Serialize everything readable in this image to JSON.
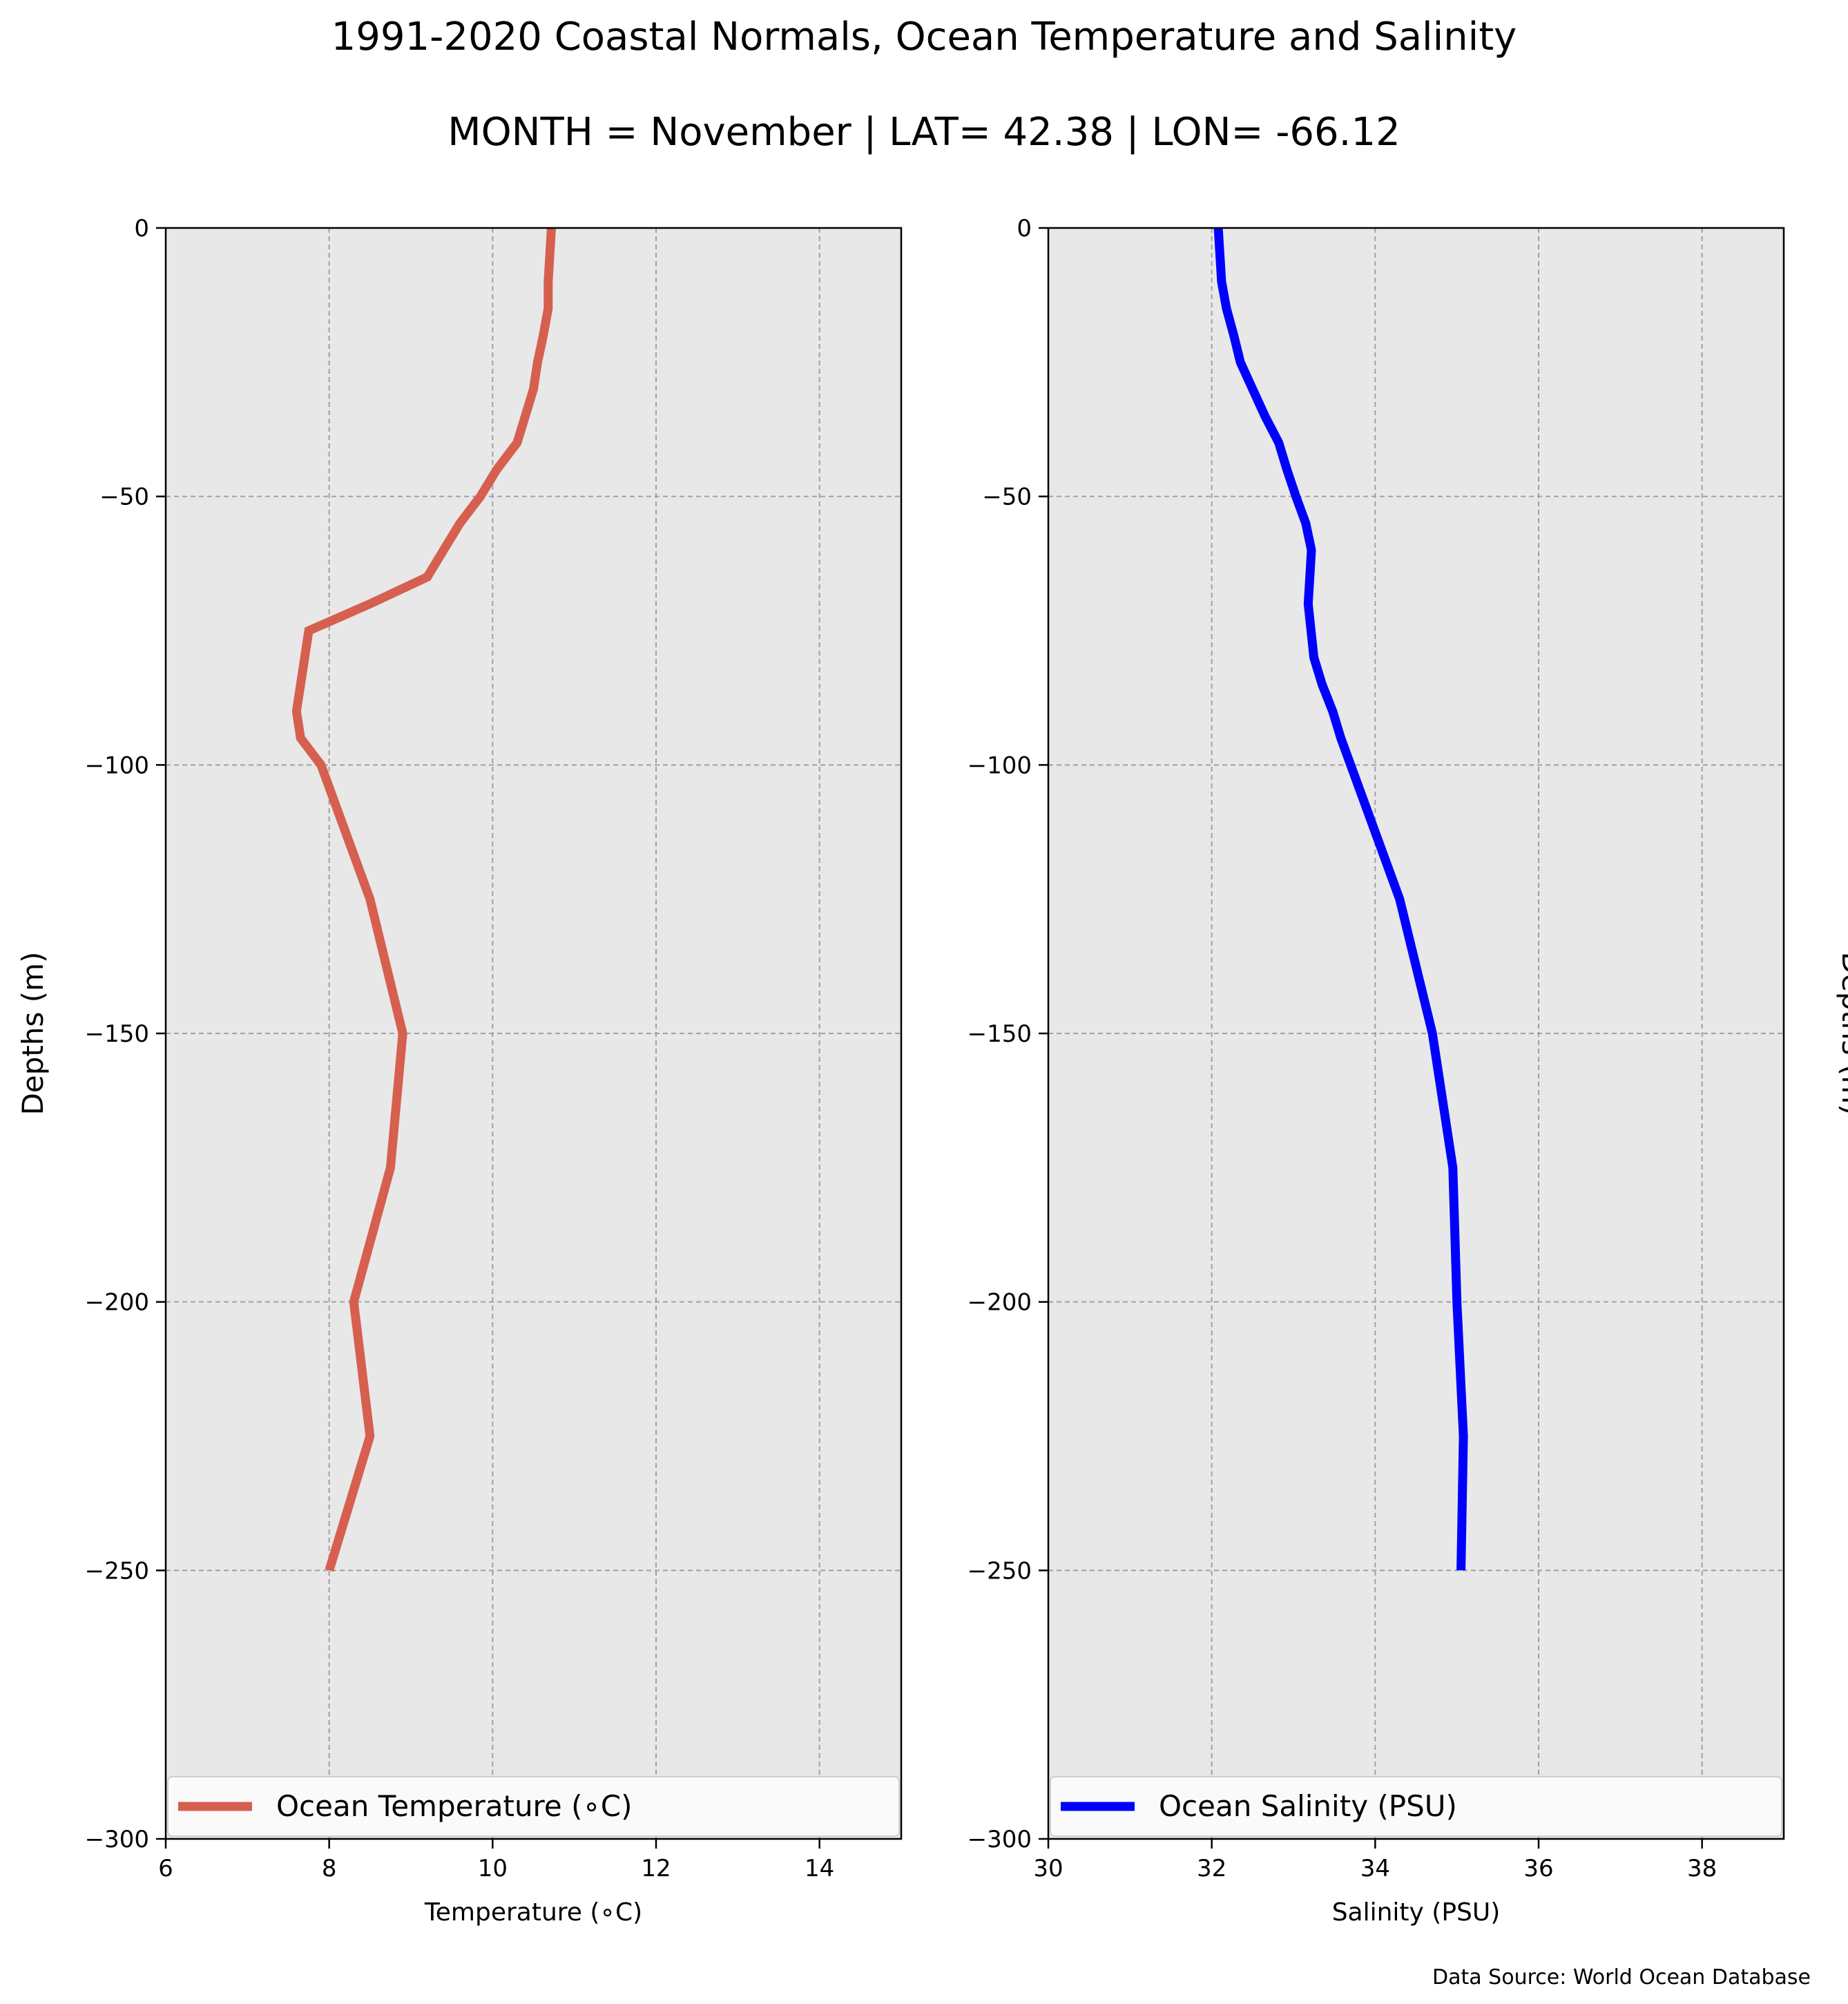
{
  "title": "1991-2020 Coastal Normals, Ocean Temperature and Salinity",
  "subtitle": "MONTH = November | LAT= 42.38 | LON= -66.12",
  "source_note": "Data Source: World Ocean Database",
  "chart_data": [
    {
      "type": "line",
      "xlabel": "Temperature (∘C)",
      "ylabel": "Depths (m)",
      "ylabel_side": "left",
      "xlim": [
        6,
        15
      ],
      "ylim": [
        -300,
        0
      ],
      "xticks": [
        6,
        8,
        10,
        12,
        14
      ],
      "yticks": [
        0,
        -50,
        -100,
        -150,
        -200,
        -250,
        -300
      ],
      "xtick_labels": [
        "6",
        "8",
        "10",
        "12",
        "14"
      ],
      "ytick_labels": [
        "0",
        "−50",
        "−100",
        "−150",
        "−200",
        "−250",
        "−300"
      ],
      "grid": true,
      "legend_position": "lower-center",
      "series": [
        {
          "name": "Ocean Temperature (∘C)",
          "color": "#d65f4f",
          "x": [
            10.72,
            10.68,
            10.68,
            10.62,
            10.55,
            10.5,
            10.3,
            10.05,
            9.85,
            9.6,
            9.4,
            9.2,
            8.5,
            7.75,
            7.7,
            7.65,
            7.6,
            7.65,
            7.75,
            7.9,
            8.5,
            8.9,
            8.75,
            8.3,
            8.5,
            8.0
          ],
          "y": [
            0,
            -10,
            -15,
            -20,
            -25,
            -30,
            -40,
            -45,
            -50,
            -55,
            -60,
            -65,
            -70,
            -75,
            -80,
            -85,
            -90,
            -95,
            -97,
            -100,
            -125,
            -150,
            -175,
            -200,
            -225,
            -250
          ]
        }
      ]
    },
    {
      "type": "line",
      "xlabel": "Salinity (PSU)",
      "ylabel": "Depths (m)",
      "ylabel_side": "right",
      "xlim": [
        30,
        39
      ],
      "ylim": [
        -300,
        0
      ],
      "xticks": [
        30,
        32,
        34,
        36,
        38
      ],
      "yticks": [
        0,
        -50,
        -100,
        -150,
        -200,
        -250,
        -300
      ],
      "xtick_labels": [
        "30",
        "32",
        "34",
        "36",
        "38"
      ],
      "ytick_labels": [
        "0",
        "−50",
        "−100",
        "−150",
        "−200",
        "−250",
        "−300"
      ],
      "grid": true,
      "legend_position": "lower-center",
      "series": [
        {
          "name": "Ocean Salinity (PSU)",
          "color": "#0000ff",
          "x": [
            32.08,
            32.12,
            32.18,
            32.27,
            32.35,
            32.5,
            32.65,
            32.82,
            32.92,
            33.03,
            33.15,
            33.22,
            33.2,
            33.18,
            33.25,
            33.35,
            33.48,
            33.58,
            33.7,
            34.3,
            34.7,
            34.95,
            35.0,
            35.08,
            35.05
          ],
          "y": [
            0,
            -10,
            -15,
            -20,
            -25,
            -30,
            -35,
            -40,
            -45,
            -50,
            -55,
            -60,
            -65,
            -70,
            -80,
            -85,
            -90,
            -95,
            -100,
            -125,
            -150,
            -175,
            -200,
            -225,
            -250
          ]
        }
      ]
    }
  ]
}
